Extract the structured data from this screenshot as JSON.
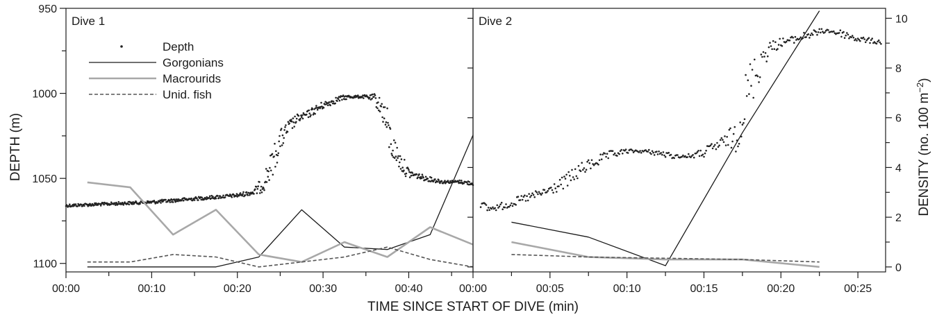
{
  "chart_data": {
    "type": "line",
    "xlabel": "TIME SINCE START OF DIVE (min)",
    "ylabel_left": "DEPTH (m)",
    "ylabel_right": "DENSITY (no. 100 m",
    "ylabel_right_sup": "−2",
    "ylabel_right_close": ")",
    "left_axis": {
      "ylim": [
        950,
        1105
      ],
      "ticks": [
        950,
        1000,
        1050,
        1100
      ],
      "inverted": true
    },
    "right_axis": {
      "ylim": [
        -0.2,
        10.4
      ],
      "ticks": [
        0,
        2,
        4,
        6,
        8,
        10
      ]
    },
    "legend": {
      "placement": "top-left",
      "entries": [
        {
          "key": "depth",
          "label": "Depth",
          "style": "dots",
          "color": "#222222"
        },
        {
          "key": "gorgonians",
          "label": "Gorgonians",
          "style": "solid",
          "color": "#1a1a1a"
        },
        {
          "key": "macrourids",
          "label": "Macrourids",
          "style": "solid-thick",
          "color": "#a8a8a8"
        },
        {
          "key": "unid_fish",
          "label": "Unid. fish",
          "style": "dashed",
          "color": "#555555"
        }
      ]
    },
    "panels": [
      {
        "label": "Dive 1",
        "xlim": [
          0,
          47.5
        ],
        "x_ticks": [
          0,
          10,
          20,
          30,
          40
        ],
        "x_tick_labels": [
          "00:00",
          "00:10",
          "00:20",
          "00:30",
          "00:40"
        ],
        "depth_profile": [
          [
            0,
            1066
          ],
          [
            5,
            1065
          ],
          [
            10,
            1064
          ],
          [
            15,
            1062
          ],
          [
            20,
            1060
          ],
          [
            22,
            1058
          ],
          [
            23,
            1053
          ],
          [
            24,
            1042
          ],
          [
            25,
            1028
          ],
          [
            26,
            1020
          ],
          [
            27,
            1015
          ],
          [
            28,
            1013
          ],
          [
            29,
            1010
          ],
          [
            30,
            1007
          ],
          [
            31,
            1005
          ],
          [
            32,
            1003
          ],
          [
            33,
            1002
          ],
          [
            34,
            1002
          ],
          [
            35,
            1002
          ],
          [
            36,
            1003
          ],
          [
            37,
            1010
          ],
          [
            38,
            1030
          ],
          [
            39,
            1040
          ],
          [
            40,
            1047
          ],
          [
            42,
            1050
          ],
          [
            44,
            1052
          ],
          [
            46,
            1052
          ],
          [
            47.5,
            1053
          ]
        ],
        "series": [
          {
            "key": "gorgonians",
            "x": [
              2.5,
              7.5,
              12.5,
              17.5,
              22.5,
              27.5,
              32.5,
              37.5,
              42.5,
              47.5
            ],
            "values": [
              0,
              0,
              0,
              0,
              0.4,
              2.3,
              0.8,
              0.7,
              1.3,
              5.3
            ]
          },
          {
            "key": "macrourids",
            "x": [
              2.5,
              7.5,
              12.5,
              17.5,
              22.5,
              27.5,
              32.5,
              37.5,
              42.5,
              47.5
            ],
            "values": [
              3.4,
              3.2,
              1.3,
              2.3,
              0.5,
              0.2,
              1.0,
              0.4,
              1.6,
              0.9
            ]
          },
          {
            "key": "unid_fish",
            "x": [
              2.5,
              7.5,
              12.5,
              17.5,
              22.5,
              27.5,
              32.5,
              37.5,
              42.5,
              47.5
            ],
            "values": [
              0.2,
              0.2,
              0.5,
              0.4,
              0.0,
              0.2,
              0.4,
              0.8,
              0.3,
              0.0
            ]
          }
        ]
      },
      {
        "label": "Dive 2",
        "xlim": [
          0,
          26.8
        ],
        "x_ticks": [
          0,
          5,
          10,
          15,
          20,
          25
        ],
        "x_tick_labels": [
          "00:00",
          "00:05",
          "00:10",
          "00:15",
          "00:20",
          "00:25"
        ],
        "depth_profile": [
          [
            0.5,
            1065
          ],
          [
            1,
            1068
          ],
          [
            2,
            1066
          ],
          [
            3,
            1063
          ],
          [
            4,
            1060
          ],
          [
            5,
            1057
          ],
          [
            6,
            1052
          ],
          [
            7,
            1045
          ],
          [
            8,
            1040
          ],
          [
            9,
            1036
          ],
          [
            10,
            1034
          ],
          [
            11,
            1034
          ],
          [
            12,
            1035
          ],
          [
            13,
            1037
          ],
          [
            14,
            1037
          ],
          [
            15,
            1035
          ],
          [
            16,
            1030
          ],
          [
            17,
            1025
          ],
          [
            17.5,
            1010
          ],
          [
            18,
            995
          ],
          [
            18.5,
            985
          ],
          [
            19,
            975
          ],
          [
            20,
            970
          ],
          [
            21,
            968
          ],
          [
            22,
            965
          ],
          [
            23,
            963
          ],
          [
            24,
            965
          ],
          [
            25,
            968
          ],
          [
            26.5,
            970
          ]
        ],
        "series": [
          {
            "key": "gorgonians",
            "x": [
              2.5,
              7.5,
              12.5,
              17.5,
              22.5
            ],
            "values": [
              1.8,
              1.2,
              0.05,
              5.4,
              10.3
            ]
          },
          {
            "key": "macrourids",
            "x": [
              2.5,
              7.5,
              12.5,
              17.5,
              22.5
            ],
            "values": [
              1.0,
              0.4,
              0.3,
              0.3,
              0.0
            ]
          },
          {
            "key": "unid_fish",
            "x": [
              2.5,
              7.5,
              12.5,
              17.5,
              22.5
            ],
            "values": [
              0.5,
              0.4,
              0.35,
              0.3,
              0.2
            ]
          }
        ]
      }
    ]
  }
}
